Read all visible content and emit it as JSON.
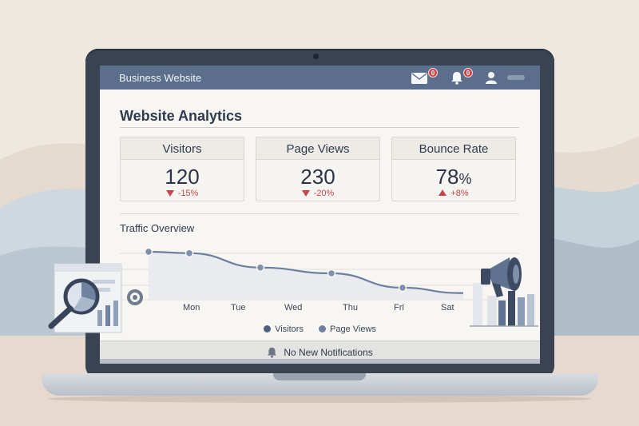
{
  "topbar": {
    "brand": "Business Website",
    "mail_badge": "0",
    "bell_badge": "0",
    "icons": [
      "mail-icon",
      "bell-icon",
      "user-icon"
    ]
  },
  "analytics": {
    "title": "Website Analytics",
    "cards": [
      {
        "label": "Visitors",
        "value": "120",
        "pct": "",
        "delta": "-15%",
        "trend": "down"
      },
      {
        "label": "Page Views",
        "value": "230",
        "pct": "",
        "delta": "-20%",
        "trend": "down"
      },
      {
        "label": "Bounce Rate",
        "value": "78",
        "pct": "%",
        "delta": "+8%",
        "trend": "up"
      }
    ]
  },
  "traffic": {
    "title": "Traffic Overview",
    "legend": [
      "Visitors",
      "Page Views"
    ]
  },
  "chart_data": {
    "type": "line",
    "categories": [
      "Mon",
      "Tue",
      "Wed",
      "Thu",
      "Fri",
      "Sat"
    ],
    "series": [
      {
        "name": "Visitors",
        "values": [
          100,
          97,
          67,
          55,
          25,
          14
        ]
      }
    ],
    "ylim": [
      0,
      110
    ],
    "grid": true,
    "legend_position": "bottom"
  },
  "notifications": {
    "text": "No New Notifications"
  },
  "colors": {
    "topbar": "#5b6e8c",
    "accent": "#5a6f92",
    "negative": "#c4464a",
    "legend_visitors": "#4d5f80",
    "legend_pageviews": "#6e829f"
  }
}
